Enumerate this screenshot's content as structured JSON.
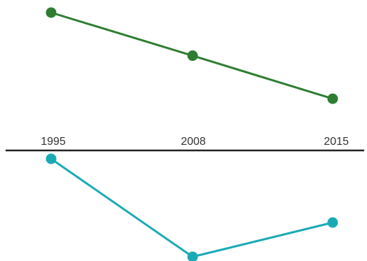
{
  "chart_data": {
    "type": "line",
    "x": [
      "1995",
      "2008",
      "2015"
    ],
    "series": [
      {
        "panel": "top",
        "color": "#2e7d32",
        "values": [
          100,
          62,
          24
        ]
      },
      {
        "panel": "bottom",
        "color": "#1aaab5",
        "values": [
          100,
          0,
          35
        ]
      }
    ],
    "grid": false,
    "legend": "none",
    "colors": {
      "axis": "#222222",
      "text": "#333333"
    }
  }
}
